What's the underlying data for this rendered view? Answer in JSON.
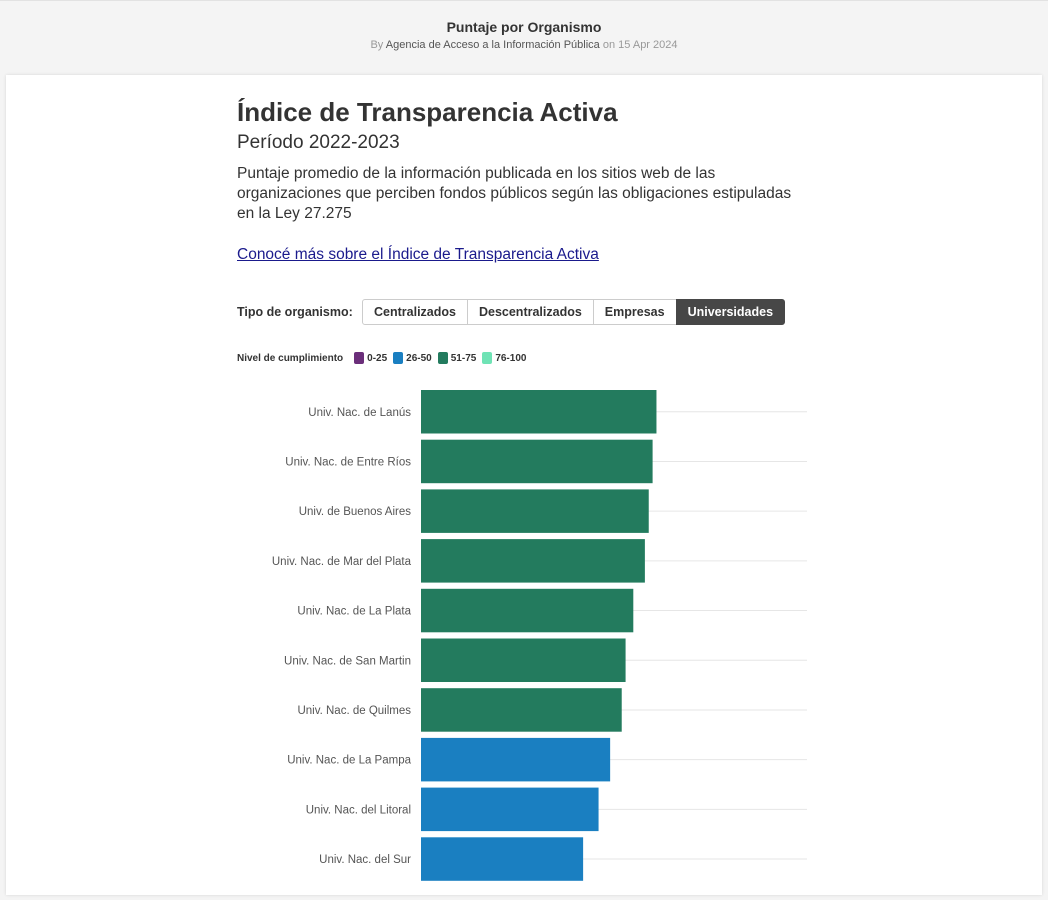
{
  "header": {
    "viz_title": "Puntaje por Organismo",
    "by": "By",
    "author": "Agencia de Acceso a la Información Pública",
    "on": "on",
    "date": "15 Apr 2024"
  },
  "main": {
    "title": "Índice de Transparencia Activa",
    "subtitle": "Período 2022-2023",
    "description": "Puntaje promedio de la información publicada en los sitios web de las organizaciones que perciben fondos públicos según las obligaciones estipuladas en la Ley 27.275",
    "link_text": "Conocé más sobre el Índice de Transparencia Activa"
  },
  "filter": {
    "label": "Tipo de organismo:",
    "options": [
      "Centralizados",
      "Descentralizados",
      "Empresas",
      "Universidades"
    ],
    "selected": "Universidades"
  },
  "legend": {
    "title": "Nivel de cumplimiento",
    "items": [
      {
        "label": "0-25",
        "color": "#6b2e7a"
      },
      {
        "label": "26-50",
        "color": "#1a7fc1"
      },
      {
        "label": "51-75",
        "color": "#237b5e"
      },
      {
        "label": "76-100",
        "color": "#6fe3b5"
      }
    ]
  },
  "chart_data": {
    "type": "bar",
    "orientation": "horizontal",
    "categories": [
      "Univ. Nac. de Lanús",
      "Univ. Nac. de Entre Ríos",
      "Univ. de Buenos Aires",
      "Univ. Nac. de Mar del Plata",
      "Univ. Nac. de La Plata",
      "Univ. Nac. de San Martin",
      "Univ. Nac. de Quilmes",
      "Univ. Nac. de La Pampa",
      "Univ. Nac. del Litoral",
      "Univ. Nac. del Sur"
    ],
    "values": [
      61,
      60,
      59,
      58,
      55,
      53,
      52,
      49,
      46,
      42
    ],
    "xlim": [
      0,
      100
    ],
    "grid": true,
    "legend_position": "top-left"
  }
}
